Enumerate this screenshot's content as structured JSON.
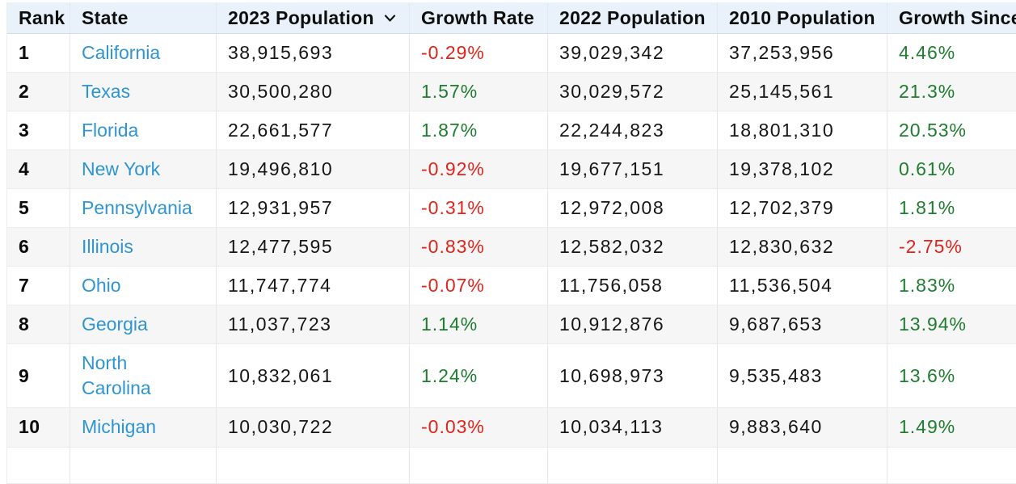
{
  "colors": {
    "link": "#2e95d3",
    "positive": "#1e7d2f",
    "negative": "#e3221a",
    "header_bg": "#e9f2fb",
    "row_alt_bg": "#f6f6f7"
  },
  "table": {
    "sort": {
      "column": "2023 Population",
      "direction_icon": "chevron-down"
    },
    "columns": [
      {
        "key": "rank",
        "label": "Rank"
      },
      {
        "key": "state",
        "label": "State"
      },
      {
        "key": "pop2023",
        "label": "2023 Population"
      },
      {
        "key": "growthRate",
        "label": "Growth Rate"
      },
      {
        "key": "pop2022",
        "label": "2022 Population"
      },
      {
        "key": "pop2010",
        "label": "2010 Population"
      },
      {
        "key": "growthSince",
        "label": "Growth Since"
      }
    ],
    "rows": [
      {
        "rank": "1",
        "state": "California",
        "pop2023": "38,915,693",
        "growthRate": "-0.29%",
        "pop2022": "39,029,342",
        "pop2010": "37,253,956",
        "growthSince": "4.46%"
      },
      {
        "rank": "2",
        "state": "Texas",
        "pop2023": "30,500,280",
        "growthRate": "1.57%",
        "pop2022": "30,029,572",
        "pop2010": "25,145,561",
        "growthSince": "21.3%"
      },
      {
        "rank": "3",
        "state": "Florida",
        "pop2023": "22,661,577",
        "growthRate": "1.87%",
        "pop2022": "22,244,823",
        "pop2010": "18,801,310",
        "growthSince": "20.53%"
      },
      {
        "rank": "4",
        "state": "New York",
        "pop2023": "19,496,810",
        "growthRate": "-0.92%",
        "pop2022": "19,677,151",
        "pop2010": "19,378,102",
        "growthSince": "0.61%"
      },
      {
        "rank": "5",
        "state": "Pennsylvania",
        "pop2023": "12,931,957",
        "growthRate": "-0.31%",
        "pop2022": "12,972,008",
        "pop2010": "12,702,379",
        "growthSince": "1.81%"
      },
      {
        "rank": "6",
        "state": "Illinois",
        "pop2023": "12,477,595",
        "growthRate": "-0.83%",
        "pop2022": "12,582,032",
        "pop2010": "12,830,632",
        "growthSince": "-2.75%"
      },
      {
        "rank": "7",
        "state": "Ohio",
        "pop2023": "11,747,774",
        "growthRate": "-0.07%",
        "pop2022": "11,756,058",
        "pop2010": "11,536,504",
        "growthSince": "1.83%"
      },
      {
        "rank": "8",
        "state": "Georgia",
        "pop2023": "11,037,723",
        "growthRate": "1.14%",
        "pop2022": "10,912,876",
        "pop2010": "9,687,653",
        "growthSince": "13.94%"
      },
      {
        "rank": "9",
        "state": "North Carolina",
        "pop2023": "10,832,061",
        "growthRate": "1.24%",
        "pop2022": "10,698,973",
        "pop2010": "9,535,483",
        "growthSince": "13.6%"
      },
      {
        "rank": "10",
        "state": "Michigan",
        "pop2023": "10,030,722",
        "growthRate": "-0.03%",
        "pop2022": "10,034,113",
        "pop2010": "9,883,640",
        "growthSince": "1.49%"
      }
    ]
  }
}
